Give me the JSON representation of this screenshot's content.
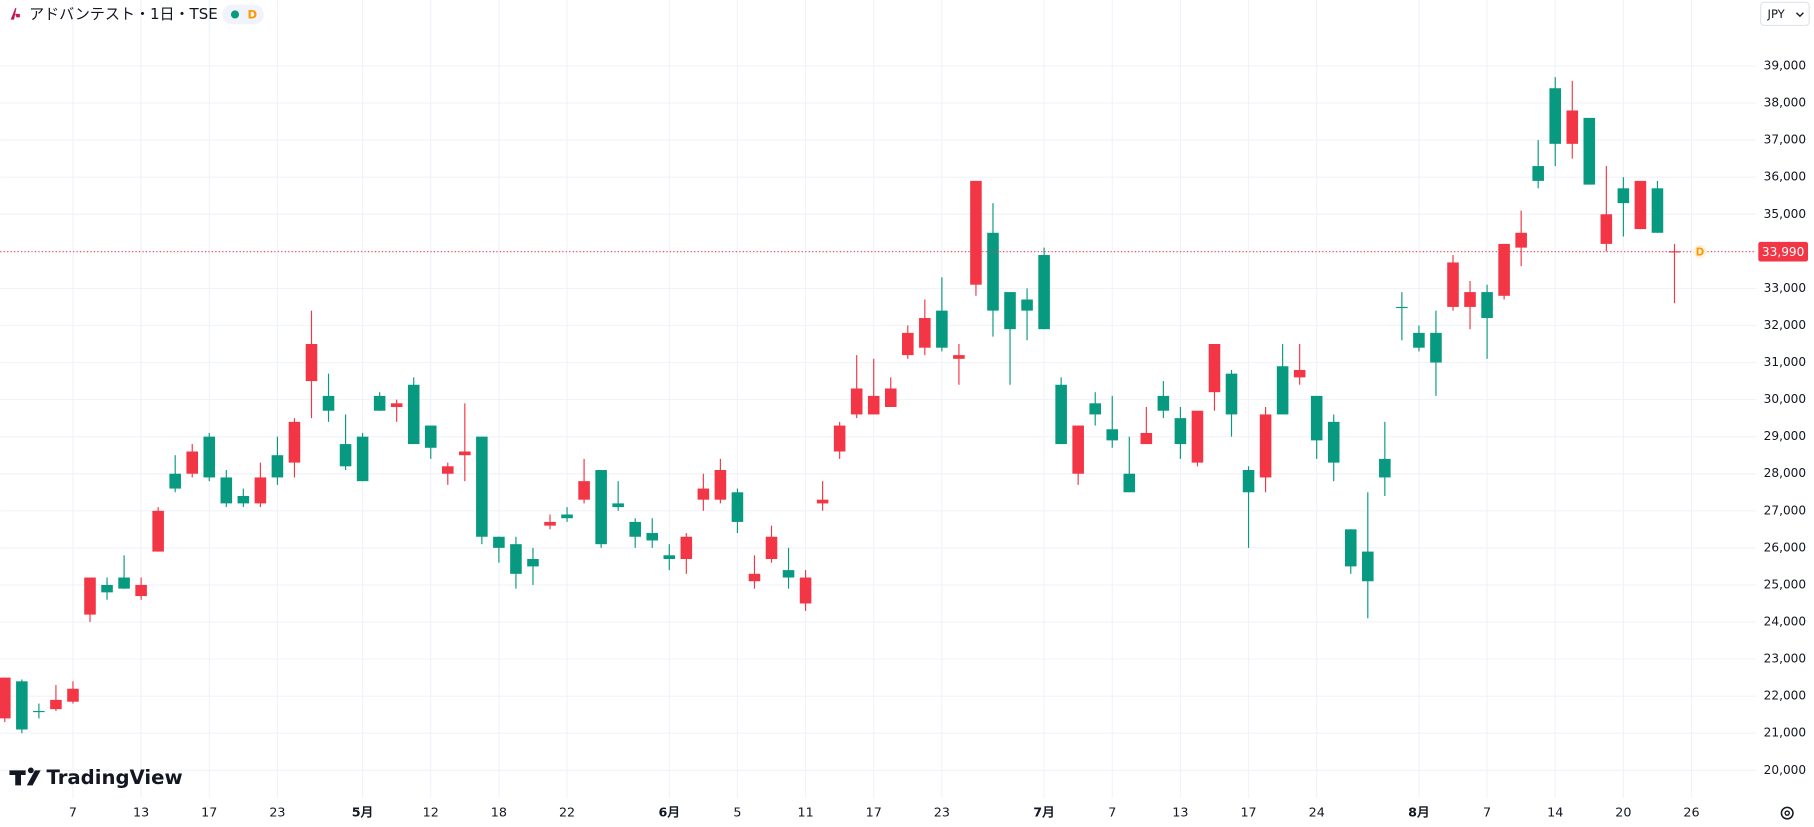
{
  "chart_data": {
    "type": "candlestick",
    "title": "アドバンテスト・1日・TSE",
    "badge": "D",
    "currency": "JPY",
    "watermark": "TradingView",
    "up_color": "#089981",
    "down_color": "#f23645",
    "grid": true,
    "categories": [
      null,
      null,
      null,
      null,
      "7",
      null,
      null,
      null,
      "13",
      null,
      null,
      null,
      "17",
      null,
      null,
      null,
      "23",
      null,
      null,
      null,
      null,
      "5月",
      null,
      null,
      null,
      "12",
      null,
      null,
      null,
      "18",
      null,
      null,
      null,
      "22",
      null,
      null,
      null,
      null,
      null,
      "6月",
      null,
      null,
      null,
      "5",
      null,
      null,
      null,
      "11",
      null,
      null,
      null,
      "17",
      null,
      null,
      null,
      "23",
      null,
      null,
      null,
      null,
      null,
      "7月",
      null,
      null,
      null,
      "7",
      null,
      null,
      null,
      "13",
      null,
      null,
      null,
      "17",
      null,
      null,
      null,
      "24",
      null,
      null,
      null,
      null,
      null,
      "8月",
      null,
      null,
      null,
      "7",
      null,
      null,
      null,
      "14",
      null,
      null,
      null,
      "20",
      null,
      null,
      null,
      "26"
    ],
    "open": [
      22500,
      21100,
      21600,
      21900,
      22200,
      25200,
      24800,
      24900,
      25000,
      27000,
      27600,
      28600,
      27900,
      27200,
      27200,
      27900,
      27900,
      29400,
      31500,
      29700,
      28200,
      27800,
      29700,
      29900,
      28800,
      28700,
      28200,
      28600,
      26300,
      26000,
      25300,
      25500,
      26700,
      26800,
      27800,
      26100,
      27100,
      26300,
      26200,
      25700,
      26300,
      27600,
      28100,
      26700,
      25300,
      26300,
      25200,
      25200,
      27300,
      29300,
      30300,
      30100,
      30300,
      31800,
      32200,
      31400,
      31200,
      35900,
      32400,
      31900,
      32400,
      31900,
      28800,
      29300,
      29600,
      28900,
      27500,
      29100,
      29700,
      28800,
      29700,
      31500,
      29600,
      27500,
      29600,
      29600,
      30800,
      28900,
      28300,
      25500,
      25100,
      27900,
      32500,
      31400,
      31000,
      33700,
      32900,
      32200,
      34200,
      34500,
      35900,
      36900,
      37800,
      35800,
      35000,
      35300,
      35900,
      34500,
      34000,
      null
    ],
    "high": [
      22500,
      22450,
      21800,
      22300,
      22400,
      25200,
      25200,
      25800,
      25200,
      27100,
      28500,
      28800,
      29100,
      28100,
      27600,
      28300,
      29000,
      29500,
      32400,
      30700,
      29600,
      29100,
      30200,
      30000,
      30600,
      29300,
      28300,
      29900,
      29000,
      26300,
      26300,
      26000,
      26900,
      27100,
      28400,
      28100,
      27800,
      26800,
      26800,
      26100,
      26400,
      28000,
      28400,
      27600,
      25800,
      26600,
      26000,
      25400,
      27800,
      29400,
      31200,
      31100,
      30600,
      32000,
      32700,
      33300,
      31500,
      35900,
      35300,
      32900,
      33000,
      34100,
      30600,
      29300,
      30200,
      30100,
      29000,
      29800,
      30500,
      29800,
      29700,
      31500,
      30800,
      28200,
      29800,
      31500,
      31500,
      30100,
      29600,
      26500,
      27500,
      29400,
      32900,
      32000,
      32400,
      33900,
      33200,
      33100,
      34200,
      35100,
      37000,
      38700,
      38600,
      37600,
      36300,
      36000,
      35900,
      35900,
      34200,
      null
    ],
    "low": [
      21300,
      21000,
      21400,
      21600,
      21800,
      24000,
      24600,
      24900,
      24600,
      25900,
      27500,
      27900,
      27800,
      27100,
      27100,
      27100,
      27700,
      27900,
      29500,
      29400,
      28100,
      27800,
      29700,
      29400,
      28800,
      28400,
      27700,
      27800,
      26100,
      25600,
      24900,
      25000,
      26500,
      26700,
      27200,
      26000,
      27000,
      26000,
      26000,
      25400,
      25300,
      27000,
      27200,
      26400,
      24900,
      25600,
      24900,
      24300,
      27000,
      28400,
      29500,
      29600,
      29800,
      31100,
      31200,
      31300,
      30400,
      32800,
      31700,
      30400,
      31600,
      31900,
      28800,
      27700,
      29300,
      28700,
      27500,
      28800,
      29500,
      28400,
      28200,
      29700,
      29000,
      26000,
      27500,
      29600,
      30400,
      28400,
      27800,
      25300,
      24100,
      27400,
      31600,
      31300,
      30100,
      32400,
      31900,
      31100,
      32700,
      33600,
      35700,
      36300,
      36500,
      35800,
      34000,
      34400,
      34600,
      34500,
      32600,
      null
    ],
    "close": [
      21400,
      22400,
      21600,
      21650,
      21850,
      24200,
      25000,
      25200,
      24700,
      25900,
      28000,
      28000,
      29000,
      27900,
      27400,
      27200,
      28500,
      28300,
      30500,
      30100,
      28800,
      29000,
      30100,
      29800,
      30400,
      29300,
      28000,
      28500,
      29000,
      26300,
      26100,
      25700,
      26600,
      26900,
      27300,
      28100,
      27200,
      26700,
      26400,
      25800,
      25700,
      27300,
      27300,
      27500,
      25100,
      25700,
      25400,
      24500,
      27200,
      28600,
      29600,
      29600,
      29800,
      31200,
      31400,
      32400,
      31100,
      33100,
      34500,
      32900,
      32700,
      33900,
      30400,
      28000,
      29900,
      29200,
      28000,
      28800,
      30100,
      29500,
      28300,
      30200,
      30700,
      28100,
      27900,
      30900,
      30600,
      30100,
      29400,
      26500,
      25900,
      28400,
      32500,
      31800,
      31800,
      32500,
      32500,
      32900,
      32800,
      34100,
      36300,
      38400,
      36900,
      37600,
      34200,
      35700,
      34600,
      35700,
      33990,
      null
    ],
    "last_price": {
      "value": 33990,
      "label": "33,990"
    },
    "ylim": [
      19250,
      40780
    ],
    "yticks": [
      {
        "value": 20000,
        "label": "20,000"
      },
      {
        "value": 21000,
        "label": "21,000"
      },
      {
        "value": 22000,
        "label": "22,000"
      },
      {
        "value": 23000,
        "label": "23,000"
      },
      {
        "value": 24000,
        "label": "24,000"
      },
      {
        "value": 25000,
        "label": "25,000"
      },
      {
        "value": 26000,
        "label": "26,000"
      },
      {
        "value": 27000,
        "label": "27,000"
      },
      {
        "value": 28000,
        "label": "28,000"
      },
      {
        "value": 29000,
        "label": "29,000"
      },
      {
        "value": 30000,
        "label": "30,000"
      },
      {
        "value": 31000,
        "label": "31,000"
      },
      {
        "value": 32000,
        "label": "32,000"
      },
      {
        "value": 33000,
        "label": "33,000"
      },
      {
        "value": 34000,
        "label": "34,000"
      },
      {
        "value": 35000,
        "label": "35,000"
      },
      {
        "value": 36000,
        "label": "36,000"
      },
      {
        "value": 37000,
        "label": "37,000"
      },
      {
        "value": 38000,
        "label": "38,000"
      },
      {
        "value": 39000,
        "label": "39,000"
      }
    ]
  }
}
